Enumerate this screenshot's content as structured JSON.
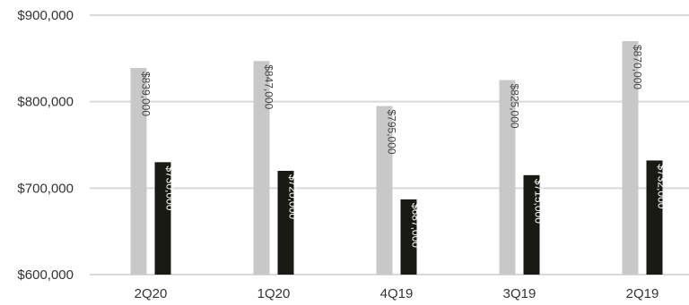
{
  "chart_data": {
    "type": "bar",
    "categories": [
      "2Q20",
      "1Q20",
      "4Q19",
      "3Q19",
      "2Q19"
    ],
    "series": [
      {
        "values": [
          839000,
          847000,
          795000,
          825000,
          870000
        ],
        "data_labels": [
          "$839,000",
          "$847,000",
          "$795,000",
          "$825,000",
          "$870,000"
        ],
        "color": "#c8c8c8",
        "label_color": "#444444"
      },
      {
        "values": [
          730000,
          720000,
          687000,
          715000,
          732000
        ],
        "data_labels": [
          "$730,000",
          "$720,000",
          "$687,000",
          "$715,000",
          "$732,000"
        ],
        "color": "#1a1a14",
        "label_color": "#ffffff"
      }
    ],
    "ylim": [
      600000,
      900000
    ],
    "yticks": [
      600000,
      700000,
      800000,
      900000
    ],
    "ytick_labels": [
      "$600,000",
      "$700,000",
      "$800,000",
      "$900,000"
    ],
    "grid": true,
    "grid_color": "#d9d9d9",
    "title": "",
    "xlabel": "",
    "ylabel": ""
  }
}
